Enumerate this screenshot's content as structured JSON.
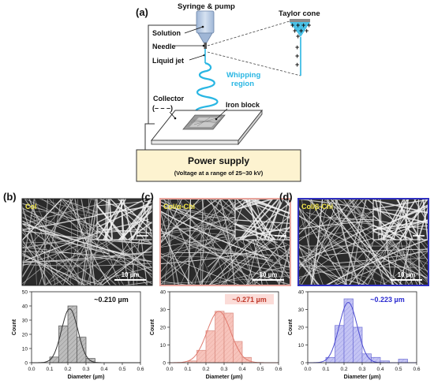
{
  "schematic": {
    "panel_label": "(a)",
    "labels": {
      "syringe": "Syringe & pump",
      "solution": "Solution",
      "needle": "Needle",
      "liquid_jet": "Liquid jet",
      "taylor_cone": "Taylor cone",
      "whipping": "Whipping\nregion",
      "collector": "Collector",
      "collector_sign": "(– – –)",
      "iron_block": "Iron block"
    },
    "power_supply": {
      "title": "Power supply",
      "subtitle": "(Voltage at a range of 25~30 kV)"
    },
    "colors": {
      "whipping": "#29b6e3",
      "power_box_fill": "#fdf3d0",
      "syringe": "#b7cbe3"
    }
  },
  "panels": [
    {
      "label": "(b)",
      "sample": "Col",
      "scale_bar": "10 µm",
      "frame_color": "#222222",
      "mean_label": "~0.210 µm",
      "mean_color": "#111111",
      "mean_box": "none"
    },
    {
      "label": "(c)",
      "sample": "Col/α-Chi",
      "scale_bar": "10 µm",
      "frame_color": "#e8a49c",
      "mean_label": "~0.271 µm",
      "mean_color": "#c0392b",
      "mean_box": "#fbdcd8"
    },
    {
      "label": "(d)",
      "sample": "Col/β-Chi",
      "scale_bar": "10 µm",
      "frame_color": "#3030c0",
      "mean_label": "~0.223 µm",
      "mean_color": "#2a2ad0",
      "mean_box": "none"
    }
  ],
  "chart_data": [
    {
      "type": "bar",
      "panel": "(b)",
      "xlabel": "Diameter (µm)",
      "ylabel": "Count",
      "xlim": [
        0.0,
        0.6
      ],
      "ylim": [
        0,
        50
      ],
      "xticks": [
        "0.0",
        "0.1",
        "0.2",
        "0.3",
        "0.4",
        "0.5",
        "0.6"
      ],
      "yticks": [
        "0",
        "10",
        "20",
        "30",
        "40",
        "50"
      ],
      "bin_width": 0.05,
      "bins": [
        0.1,
        0.15,
        0.2,
        0.25,
        0.3
      ],
      "counts": [
        4,
        26,
        40,
        18,
        3
      ],
      "fit_mean": 0.21,
      "fit_sigma": 0.045,
      "fit_peak": 38,
      "bar_fill": "#bdbdbd",
      "bar_stroke": "#555555",
      "fit_color": "#333333"
    },
    {
      "type": "bar",
      "panel": "(c)",
      "xlabel": "Diameter (µm)",
      "ylabel": "Count",
      "xlim": [
        0.0,
        0.6
      ],
      "ylim": [
        0,
        40
      ],
      "xticks": [
        "0.0",
        "0.1",
        "0.2",
        "0.3",
        "0.4",
        "0.5",
        "0.6"
      ],
      "yticks": [
        "0",
        "10",
        "20",
        "30",
        "40"
      ],
      "bin_width": 0.05,
      "bins": [
        0.1,
        0.15,
        0.2,
        0.25,
        0.3,
        0.35,
        0.4
      ],
      "counts": [
        1,
        7,
        18,
        29,
        28,
        12,
        3
      ],
      "fit_mean": 0.271,
      "fit_sigma": 0.065,
      "fit_peak": 29,
      "bar_fill": "#f7c4bc",
      "bar_stroke": "#d98b80",
      "fit_color": "#e07a6e"
    },
    {
      "type": "bar",
      "panel": "(d)",
      "xlabel": "Diameter (µm)",
      "ylabel": "Count",
      "xlim": [
        0.0,
        0.6
      ],
      "ylim": [
        0,
        40
      ],
      "xticks": [
        "0.0",
        "0.1",
        "0.2",
        "0.3",
        "0.4",
        "0.5",
        "0.6"
      ],
      "yticks": [
        "0",
        "10",
        "20",
        "30",
        "40"
      ],
      "bin_width": 0.05,
      "bins": [
        0.1,
        0.15,
        0.2,
        0.25,
        0.3,
        0.35,
        0.4,
        0.5
      ],
      "counts": [
        3,
        21,
        36,
        20,
        5,
        3,
        1,
        2
      ],
      "fit_mean": 0.223,
      "fit_sigma": 0.05,
      "fit_peak": 34,
      "bar_fill": "#c4c4f4",
      "bar_stroke": "#6f6fd6",
      "fit_color": "#4a4ad0"
    }
  ]
}
